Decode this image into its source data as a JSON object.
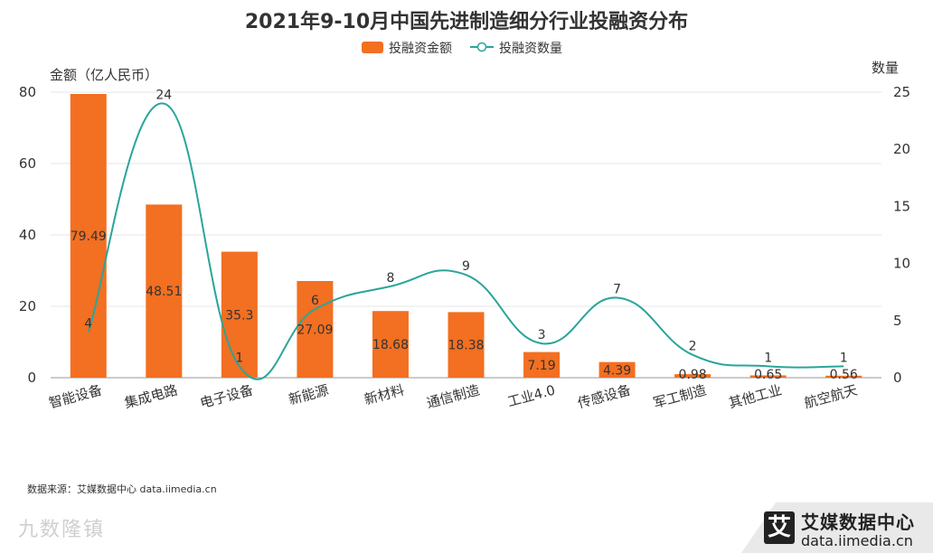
{
  "page": {
    "source": "数据来源：艾媒数据中心 data.iimedia.cn",
    "brand_name": "艾媒数据中心",
    "brand_url": "data.iimedia.cn",
    "brand_logo_glyph": "艾",
    "watermark": "九数隆镇"
  },
  "colors": {
    "bar": "#f36f21",
    "line": "#2aa59a",
    "grid": "#e6e6e6",
    "axis": "#999999"
  },
  "chart_data": {
    "type": "bar",
    "title": "2021年9-10月中国先进制造细分行业投融资分布",
    "legend_position": "top-center",
    "categories": [
      "智能设备",
      "集成电路",
      "电子设备",
      "新能源",
      "新材料",
      "通信制造",
      "工业4.0",
      "传感设备",
      "军工制造",
      "其他工业",
      "航空航天"
    ],
    "ylabel_left": "金额（亿人民币）",
    "ylabel_right": "数量",
    "ylim_left": [
      0,
      80
    ],
    "ylim_right": [
      0,
      25
    ],
    "yticks_left": [
      "0",
      "20",
      "40",
      "60",
      "80"
    ],
    "yticks_right": [
      "0",
      "5",
      "10",
      "15",
      "20",
      "25"
    ],
    "grid": true,
    "series": [
      {
        "name": "投融资金额",
        "type": "bar",
        "axis": "left",
        "values": [
          79.49,
          48.51,
          35.3,
          27.09,
          18.68,
          18.38,
          7.19,
          4.39,
          0.98,
          0.65,
          0.56
        ],
        "labels": [
          "79.49",
          "48.51",
          "35.3",
          "27.09",
          "18.68",
          "18.38",
          "7.19",
          "4.39",
          "0.98",
          "0.65",
          "0.56"
        ]
      },
      {
        "name": "投融资数量",
        "type": "line",
        "axis": "right",
        "smooth": true,
        "values": [
          4,
          24,
          1,
          6,
          8,
          9,
          3,
          7,
          2,
          1,
          1
        ],
        "labels": [
          "4",
          "24",
          "1",
          "6",
          "8",
          "9",
          "3",
          "7",
          "2",
          "1",
          "1"
        ]
      }
    ]
  }
}
